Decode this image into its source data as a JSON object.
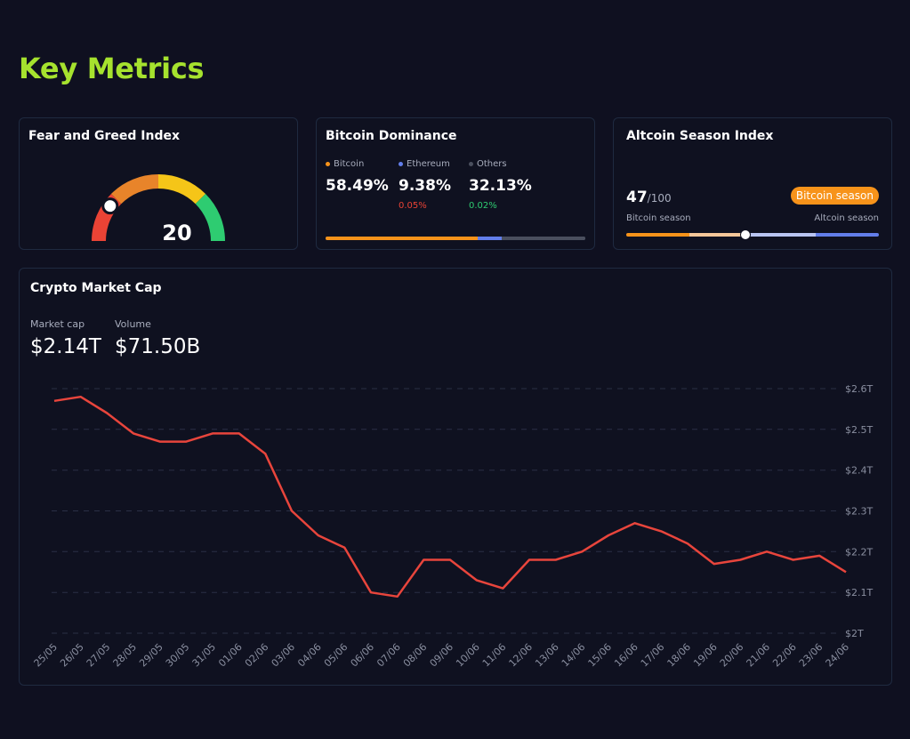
{
  "page": {
    "title": "Key Metrics"
  },
  "fear_greed": {
    "title": "Fear and Greed Index",
    "value": "20",
    "value_num": 20,
    "segment_colors": [
      "#ea4335",
      "#e8842a",
      "#f5c518",
      "#2ecc71"
    ]
  },
  "dominance": {
    "title": "Bitcoin Dominance",
    "items": [
      {
        "name": "Bitcoin",
        "value": "58.49%",
        "change": "",
        "color": "#f7931a",
        "share": 58.49
      },
      {
        "name": "Ethereum",
        "value": "9.38%",
        "change": "0.05%",
        "change_color": "#ea4335",
        "color": "#627eea",
        "share": 9.38
      },
      {
        "name": "Others",
        "value": "32.13%",
        "change": "0.02%",
        "change_color": "#2ecc71",
        "color": "#4a4f5e",
        "share": 32.13
      }
    ]
  },
  "altcoin": {
    "title": "Altcoin Season Index",
    "value": "47",
    "max": "/100",
    "value_num": 47,
    "badge": "Bitcoin season",
    "left_label": "Bitcoin season",
    "right_label": "Altcoin season",
    "colors": {
      "badge": "#f7931a",
      "low": "#f7931a",
      "low_light": "#f5c79a",
      "high_light": "#b9c5f2",
      "high": "#627eea"
    }
  },
  "market_cap": {
    "title": "Crypto Market Cap",
    "cap_label": "Market cap",
    "cap_value": "$2.14T",
    "volume_label": "Volume",
    "volume_value": "$71.50B"
  },
  "chart_data": {
    "type": "line",
    "x": [
      "25/05",
      "26/05",
      "27/05",
      "28/05",
      "29/05",
      "30/05",
      "31/05",
      "01/06",
      "02/06",
      "03/06",
      "04/06",
      "05/06",
      "06/06",
      "07/06",
      "08/06",
      "09/06",
      "10/06",
      "11/06",
      "12/06",
      "13/06",
      "14/06",
      "15/06",
      "16/06",
      "17/06",
      "18/06",
      "19/06",
      "20/06",
      "21/06",
      "22/06",
      "23/06",
      "24/06"
    ],
    "series": [
      {
        "name": "",
        "color": "#e8453c",
        "values": [
          2.57,
          2.58,
          2.54,
          2.49,
          2.47,
          2.47,
          2.49,
          2.49,
          2.44,
          2.3,
          2.24,
          2.21,
          2.1,
          2.09,
          2.18,
          2.18,
          2.13,
          2.11,
          2.18,
          2.18,
          2.2,
          2.24,
          2.27,
          2.25,
          2.22,
          2.17,
          2.18,
          2.2,
          2.18,
          2.19,
          2.15
        ]
      }
    ],
    "y_ticks": [
      "$2T",
      "$2.1T",
      "$2.2T",
      "$2.3T",
      "$2.4T",
      "$2.5T",
      "$2.6T"
    ],
    "ylim": [
      2.0,
      2.6
    ],
    "grid": true,
    "xlabel": "",
    "ylabel": ""
  }
}
